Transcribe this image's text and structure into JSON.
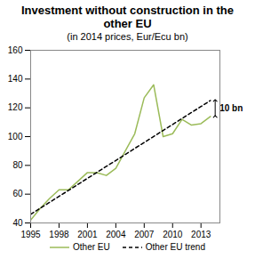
{
  "chart_data": {
    "type": "line",
    "title": "Investment without construction in the other EU",
    "subtitle": "(in 2014 prices, Eur/Ecu bn)",
    "x": [
      1995,
      1996,
      1997,
      1998,
      1999,
      2000,
      2001,
      2002,
      2003,
      2004,
      2005,
      2006,
      2007,
      2008,
      2009,
      2010,
      2011,
      2012,
      2013,
      2014
    ],
    "series": [
      {
        "name": "Other EU",
        "color": "#9bbb59",
        "line_style": "solid",
        "values": [
          42,
          50,
          57,
          63,
          63,
          69,
          75,
          75,
          73,
          78,
          90,
          102,
          127,
          136,
          100,
          102,
          112,
          108,
          109,
          114
        ]
      },
      {
        "name": "Other EU trend",
        "color": "#000000",
        "line_style": "dashed",
        "values": [
          46,
          50.2,
          54.3,
          58.5,
          62.6,
          66.8,
          71,
          75.1,
          79.3,
          83.4,
          87.6,
          91.8,
          95.9,
          100.1,
          104.3,
          108.4,
          112.6,
          116.8,
          120.9,
          125.1
        ]
      }
    ],
    "xlim": [
      1995,
      2015
    ],
    "xticks": [
      1995,
      1998,
      2001,
      2004,
      2007,
      2010,
      2013
    ],
    "ylim": [
      40,
      160
    ],
    "yticks": [
      40,
      60,
      80,
      100,
      120,
      140,
      160
    ],
    "grid": false,
    "legend": "bottom",
    "annotations": [
      {
        "text": "10 bn"
      }
    ]
  }
}
